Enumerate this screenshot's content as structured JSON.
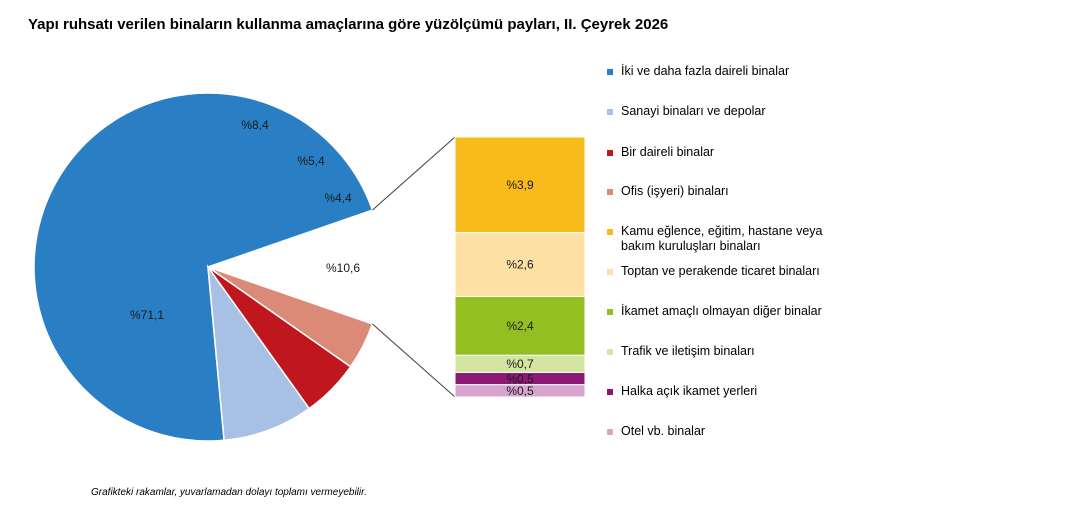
{
  "title": "Yapı ruhsatı verilen binaların kullanma amaçlarına göre yüzölçümü payları, II. Çeyrek 2026",
  "footnote": "Grafikteki rakamlar, yuvarlamadan dolayı toplamı vermeyebilir.",
  "chart_data": {
    "type": "pie",
    "subtype": "pie-of-pie (bar of pie)",
    "pie": {
      "slices": [
        {
          "name": "İki ve daha fazla daireli binalar",
          "value": 71.1,
          "label": "%71,1",
          "color": "#2a7fc4"
        },
        {
          "name": "Sanayi binaları ve depolar",
          "value": 8.4,
          "label": "%8,4",
          "color": "#a7c0e4"
        },
        {
          "name": "Bir daireli binalar",
          "value": 5.4,
          "label": "%5,4",
          "color": "#c0171e"
        },
        {
          "name": "Ofis (işyeri) binaları",
          "value": 4.4,
          "label": "%4,4",
          "color": "#dc8a78"
        }
      ],
      "other": {
        "value": 10.6,
        "label": "%10,6"
      }
    },
    "stack": {
      "segments": [
        {
          "name": "Kamu eğlence, eğitim, hastane veya bakım kuruluşları binaları",
          "value": 3.9,
          "label": "%3,9",
          "color": "#f9bb1c"
        },
        {
          "name": "Toptan ve perakende ticaret binaları",
          "value": 2.6,
          "label": "%2,6",
          "color": "#fde0a3"
        },
        {
          "name": "İkamet amaçlı olmayan diğer binalar",
          "value": 2.4,
          "label": "%2,4",
          "color": "#93bf23"
        },
        {
          "name": "Trafik ve iletişim binaları",
          "value": 0.7,
          "label": "%0,7",
          "color": "#d3e5a0"
        },
        {
          "name": "Halka açık ikamet yerleri",
          "value": 0.5,
          "label": "%0,5",
          "color": "#8c1a75"
        },
        {
          "name": "Otel vb. binalar",
          "value": 0.5,
          "label": "%0,5",
          "color": "#d6a4cc"
        }
      ]
    },
    "legend_position": "right",
    "legend": [
      {
        "label": "İki ve daha fazla daireli binalar",
        "color": "#2a7fc4"
      },
      {
        "label": "Sanayi binaları ve depolar",
        "color": "#a7c0e4"
      },
      {
        "label": "Bir daireli binalar",
        "color": "#c0171e"
      },
      {
        "label": "Ofis (işyeri) binaları",
        "color": "#dc8a78"
      },
      {
        "label": "Kamu eğlence, eğitim, hastane veya bakım kuruluşları binaları",
        "color": "#f9bb1c"
      },
      {
        "label": "Toptan ve perakende ticaret binaları",
        "color": "#fde0a3"
      },
      {
        "label": "İkamet amaçlı olmayan diğer binalar",
        "color": "#93bf23"
      },
      {
        "label": "Trafik ve iletişim binaları",
        "color": "#d3e5a0"
      },
      {
        "label": "Halka açık ikamet yerleri",
        "color": "#8c1a75"
      },
      {
        "label": "Otel vb. binalar",
        "color": "#d6a4cc"
      }
    ]
  }
}
